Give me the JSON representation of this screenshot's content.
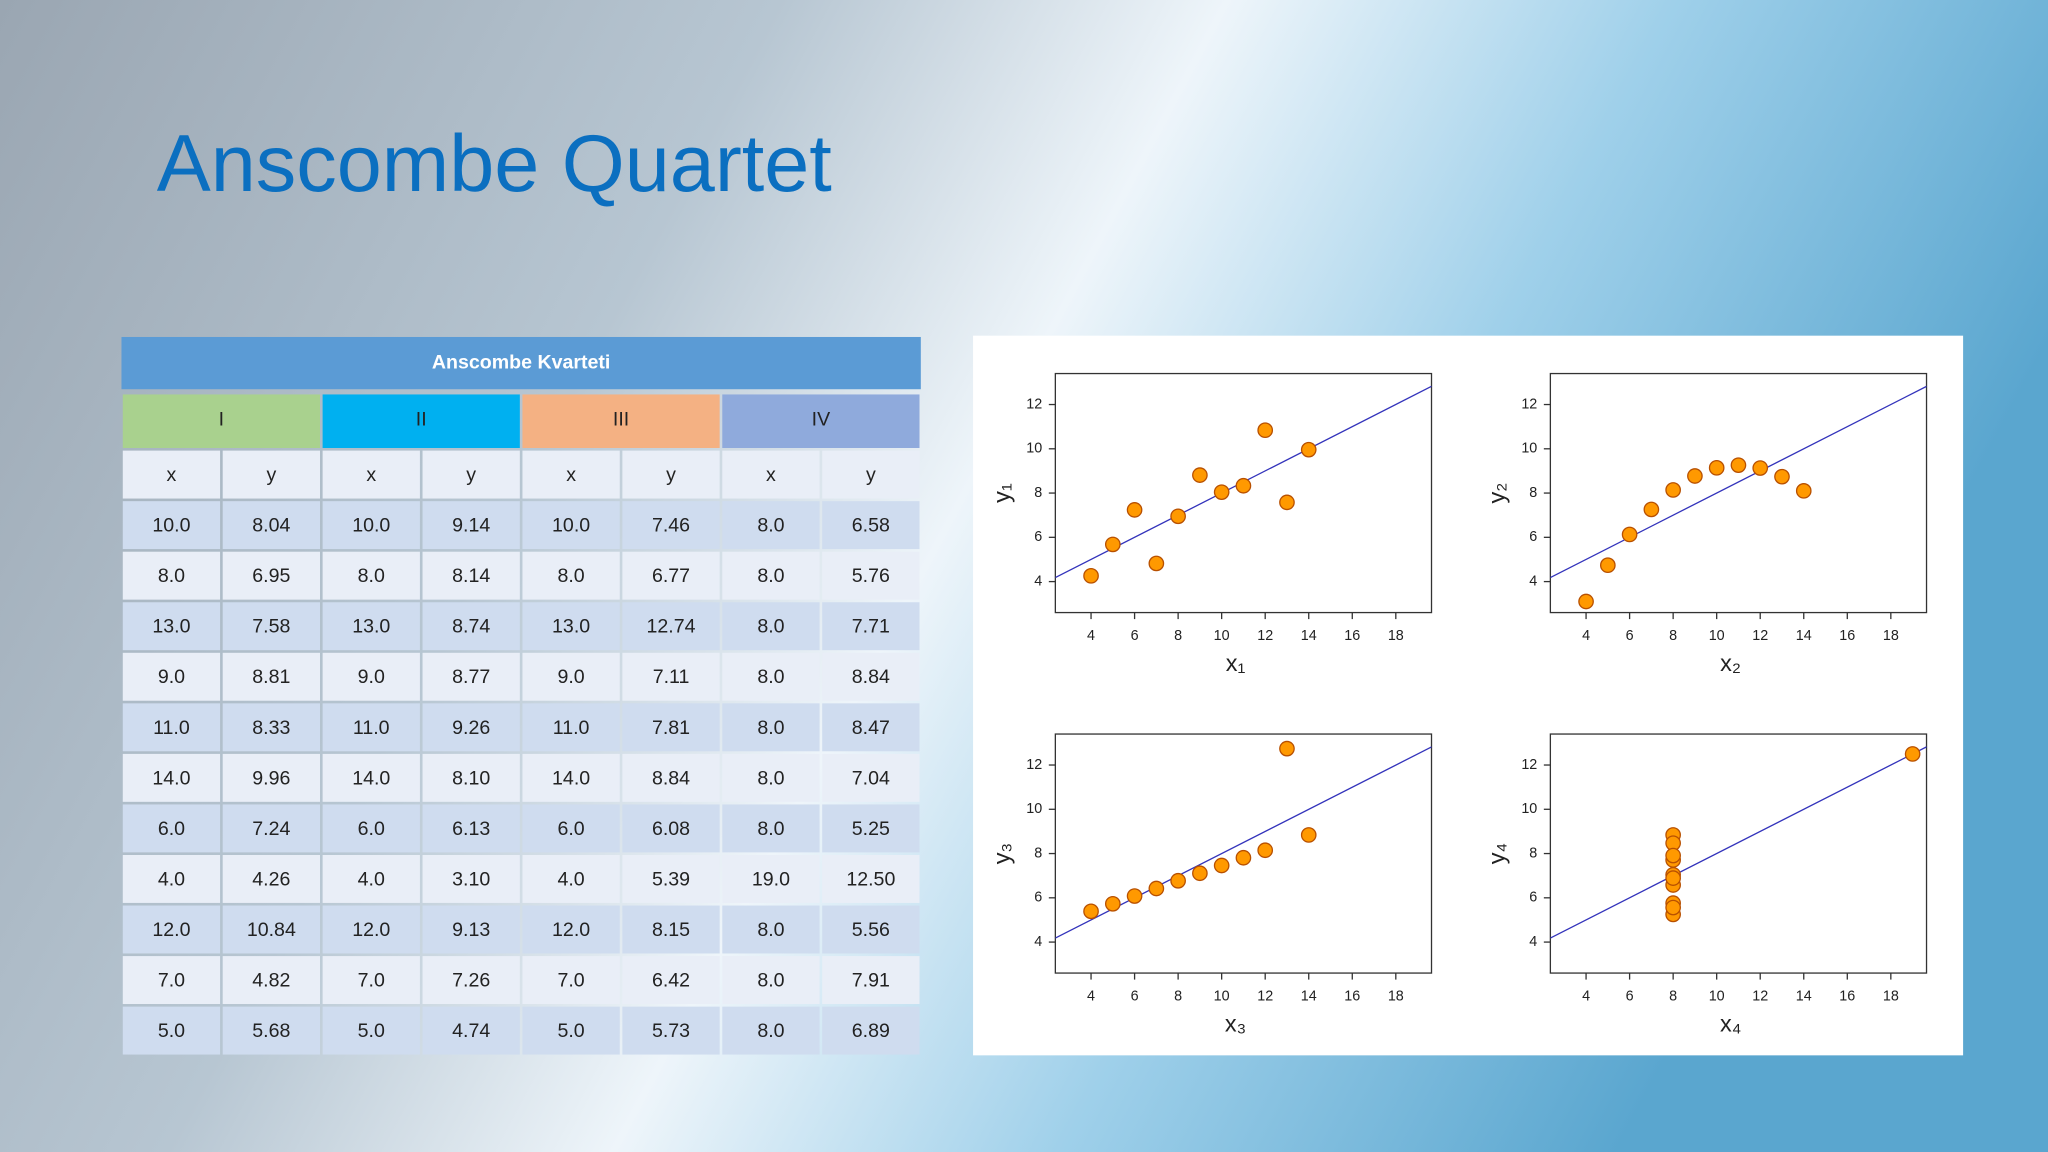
{
  "title": "Anscombe Quartet",
  "table": {
    "caption": "Anscombe Kvarteti",
    "groups": [
      "I",
      "II",
      "III",
      "IV"
    ],
    "group_colors": [
      "#a9d18e",
      "#00b0f0",
      "#f4b183",
      "#8faadc"
    ],
    "headers": [
      "x",
      "y",
      "x",
      "y",
      "x",
      "y",
      "x",
      "y"
    ],
    "rows": [
      [
        "10.0",
        "8.04",
        "10.0",
        "9.14",
        "10.0",
        "7.46",
        "8.0",
        "6.58"
      ],
      [
        "8.0",
        "6.95",
        "8.0",
        "8.14",
        "8.0",
        "6.77",
        "8.0",
        "5.76"
      ],
      [
        "13.0",
        "7.58",
        "13.0",
        "8.74",
        "13.0",
        "12.74",
        "8.0",
        "7.71"
      ],
      [
        "9.0",
        "8.81",
        "9.0",
        "8.77",
        "9.0",
        "7.11",
        "8.0",
        "8.84"
      ],
      [
        "11.0",
        "8.33",
        "11.0",
        "9.26",
        "11.0",
        "7.81",
        "8.0",
        "8.47"
      ],
      [
        "14.0",
        "9.96",
        "14.0",
        "8.10",
        "14.0",
        "8.84",
        "8.0",
        "7.04"
      ],
      [
        "6.0",
        "7.24",
        "6.0",
        "6.13",
        "6.0",
        "6.08",
        "8.0",
        "5.25"
      ],
      [
        "4.0",
        "4.26",
        "4.0",
        "3.10",
        "4.0",
        "5.39",
        "19.0",
        "12.50"
      ],
      [
        "12.0",
        "10.84",
        "12.0",
        "9.13",
        "12.0",
        "8.15",
        "8.0",
        "5.56"
      ],
      [
        "7.0",
        "4.82",
        "7.0",
        "7.26",
        "7.0",
        "6.42",
        "8.0",
        "7.91"
      ],
      [
        "5.0",
        "5.68",
        "5.0",
        "4.74",
        "5.0",
        "5.73",
        "8.0",
        "6.89"
      ]
    ]
  },
  "chart_data": [
    {
      "type": "scatter",
      "xlabel": "x₁",
      "ylabel": "y₁",
      "color": "#ff9900",
      "x": [
        10,
        8,
        13,
        9,
        11,
        14,
        6,
        4,
        12,
        7,
        5
      ],
      "y": [
        8.04,
        6.95,
        7.58,
        8.81,
        8.33,
        9.96,
        7.24,
        4.26,
        10.84,
        4.82,
        5.68
      ],
      "xlim": [
        2.36,
        19.64
      ],
      "ylim": [
        2.6,
        13.4
      ],
      "xticks": [
        4,
        6,
        8,
        10,
        12,
        14,
        16,
        18
      ],
      "yticks": [
        4,
        6,
        8,
        10,
        12
      ]
    },
    {
      "type": "scatter",
      "xlabel": "x₂",
      "ylabel": "y₂",
      "color": "#ff9900",
      "x": [
        10,
        8,
        13,
        9,
        11,
        14,
        6,
        4,
        12,
        7,
        5
      ],
      "y": [
        9.14,
        8.14,
        8.74,
        8.77,
        9.26,
        8.1,
        6.13,
        3.1,
        9.13,
        7.26,
        4.74
      ],
      "xlim": [
        2.36,
        19.64
      ],
      "ylim": [
        2.6,
        13.4
      ],
      "xticks": [
        4,
        6,
        8,
        10,
        12,
        14,
        16,
        18
      ],
      "yticks": [
        4,
        6,
        8,
        10,
        12
      ]
    },
    {
      "type": "scatter",
      "xlabel": "x₃",
      "ylabel": "y₃",
      "color": "#ff9900",
      "x": [
        10,
        8,
        13,
        9,
        11,
        14,
        6,
        4,
        12,
        7,
        5
      ],
      "y": [
        7.46,
        6.77,
        12.74,
        7.11,
        7.81,
        8.84,
        6.08,
        5.39,
        8.15,
        6.42,
        5.73
      ],
      "xlim": [
        2.36,
        19.64
      ],
      "ylim": [
        2.6,
        13.4
      ],
      "xticks": [
        4,
        6,
        8,
        10,
        12,
        14,
        16,
        18
      ],
      "yticks": [
        4,
        6,
        8,
        10,
        12
      ]
    },
    {
      "type": "scatter",
      "xlabel": "x₄",
      "ylabel": "y₄",
      "color": "#ff9900",
      "x": [
        8,
        8,
        8,
        8,
        8,
        8,
        8,
        19,
        8,
        8,
        8
      ],
      "y": [
        6.58,
        5.76,
        7.71,
        8.84,
        8.47,
        7.04,
        5.25,
        12.5,
        5.56,
        7.91,
        6.89
      ],
      "xlim": [
        2.36,
        19.64
      ],
      "ylim": [
        2.6,
        13.4
      ],
      "xticks": [
        4,
        6,
        8,
        10,
        12,
        14,
        16,
        18
      ],
      "yticks": [
        4,
        6,
        8,
        10,
        12
      ]
    }
  ]
}
